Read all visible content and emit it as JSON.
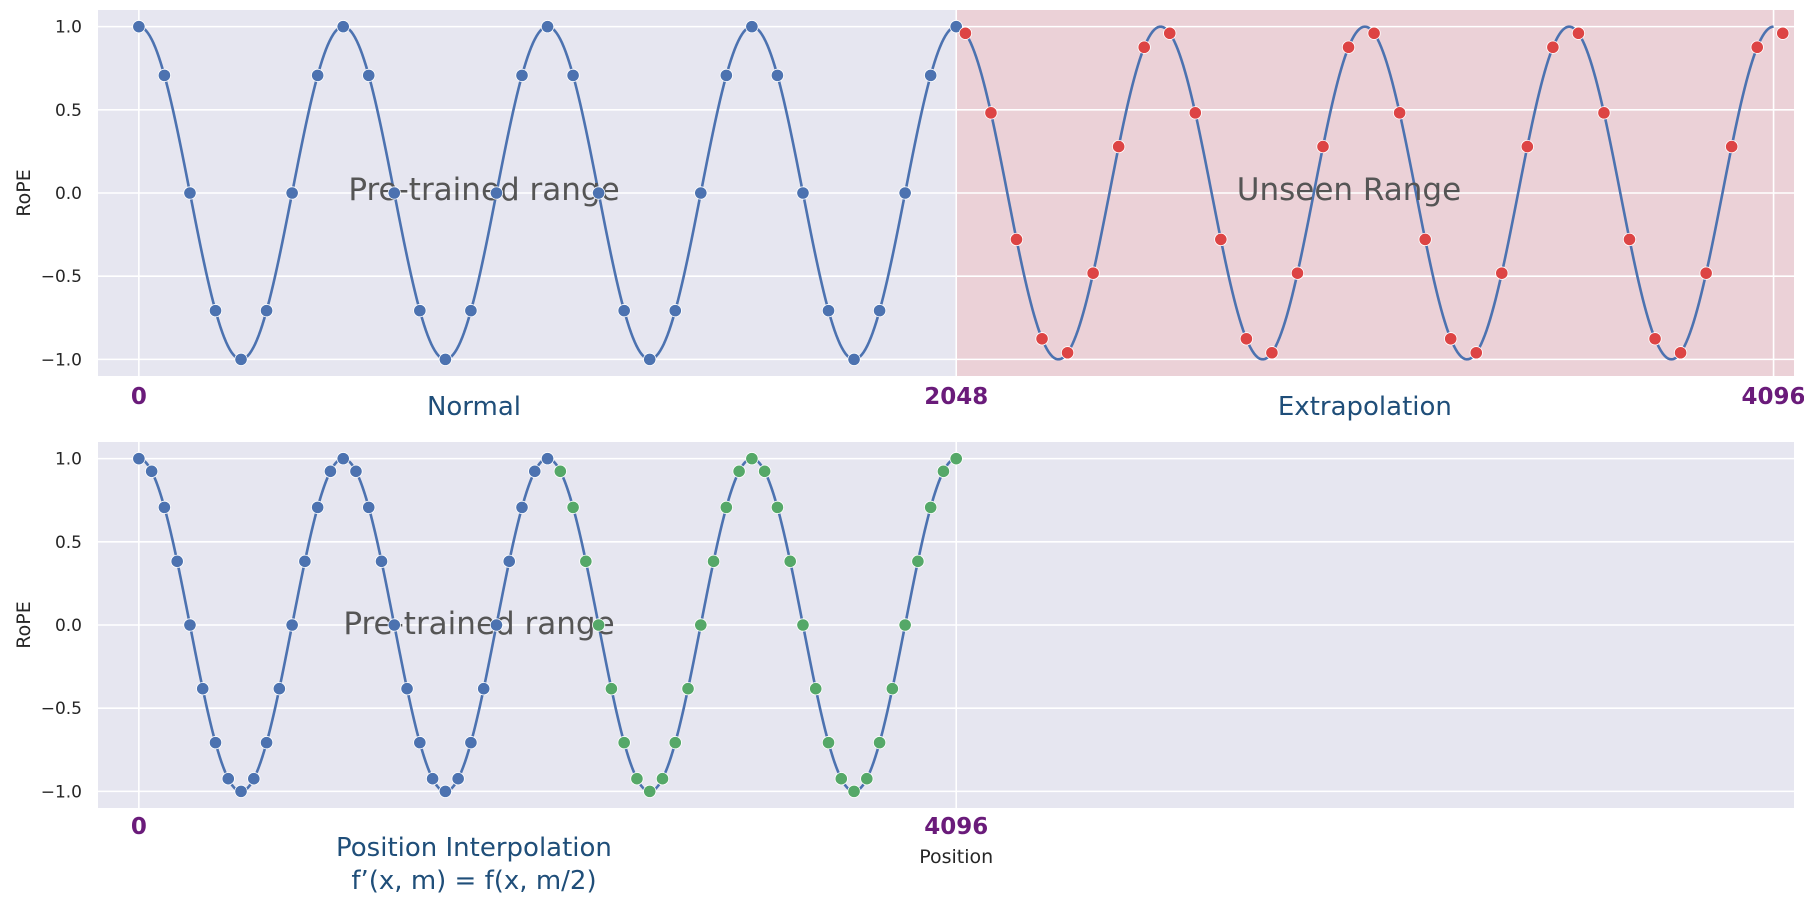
{
  "chart_data": [
    {
      "type": "line",
      "ylabel": "RoPE",
      "ylim": [
        -1.1,
        1.1
      ],
      "xlim": [
        -0.2,
        8.1
      ],
      "yticks": [
        1.0,
        0.5,
        0.0,
        -0.5,
        -1.0
      ],
      "ytick_labels": [
        "1.0",
        "0.5",
        "0.0",
        "−0.5",
        "−1.0"
      ],
      "grid": true,
      "curve": {
        "function": "cos",
        "period": 1.0,
        "x_range": [
          0,
          8
        ]
      },
      "regions": [
        {
          "label": "Pre-trained range",
          "x_range": [
            0,
            4
          ],
          "color": "#e6e6f0"
        },
        {
          "label": "Unseen Range",
          "x_range": [
            4,
            8.1
          ],
          "color": "#f2b8b8"
        }
      ],
      "position_labels": [
        {
          "x": 0,
          "label": "0"
        },
        {
          "x": 4,
          "label": "2048"
        },
        {
          "x": 8,
          "label": "4096"
        }
      ],
      "captions": [
        {
          "x": 1.64,
          "lines": [
            "Normal"
          ]
        },
        {
          "x": 6.0,
          "lines": [
            "Extrapolation"
          ]
        }
      ],
      "series": [
        {
          "color": "#4c72b0",
          "x_range": [
            0,
            4
          ],
          "step": 0.125
        },
        {
          "color": "#dd4444",
          "x_range": [
            4.045,
            8
          ],
          "step": 0.125
        }
      ]
    },
    {
      "type": "line",
      "ylabel": "RoPE",
      "xlabel": "Position",
      "ylim": [
        -1.1,
        1.1
      ],
      "xlim": [
        -0.2,
        8.1
      ],
      "yticks": [
        1.0,
        0.5,
        0.0,
        -0.5,
        -1.0
      ],
      "ytick_labels": [
        "1.0",
        "0.5",
        "0.0",
        "−0.5",
        "−1.0"
      ],
      "grid": true,
      "curve": {
        "function": "cos",
        "period": 1.0,
        "x_range": [
          0,
          4
        ]
      },
      "regions": [
        {
          "label": "Pre-trained range",
          "x_range": [
            0,
            4
          ],
          "color": "#e6e6f0"
        }
      ],
      "position_labels": [
        {
          "x": 0,
          "label": "0"
        },
        {
          "x": 4,
          "label": "4096"
        }
      ],
      "captions": [
        {
          "x": 1.64,
          "lines": [
            "Position Interpolation",
            "f’(x, m) = f(x, m/2)"
          ]
        }
      ],
      "series": [
        {
          "color": "#4c72b0",
          "x_range": [
            0,
            2
          ],
          "step": 0.0625
        },
        {
          "color": "#55a868",
          "x_range": [
            2.0625,
            4
          ],
          "step": 0.0625
        }
      ]
    }
  ]
}
